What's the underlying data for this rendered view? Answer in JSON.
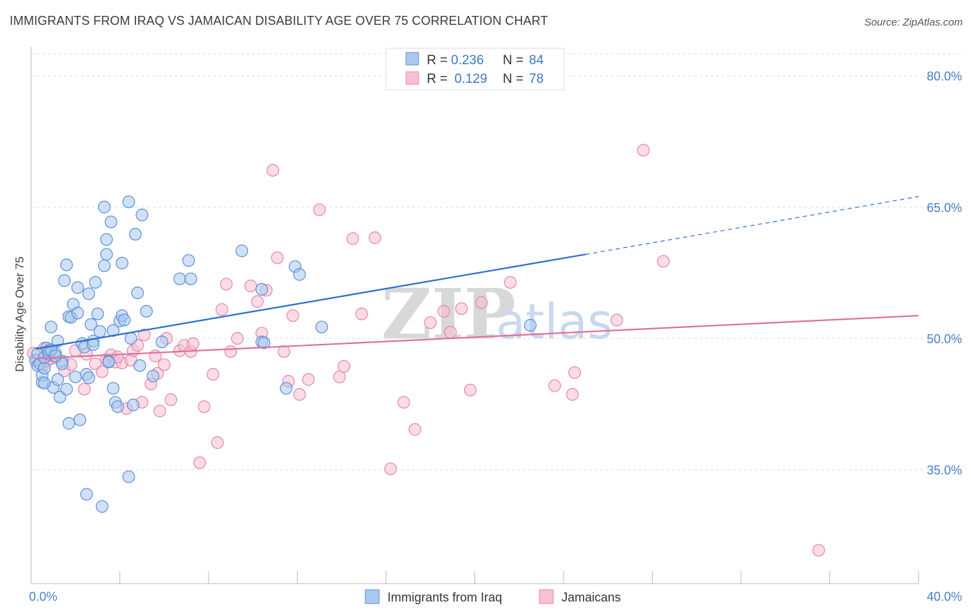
{
  "header": {
    "title": "IMMIGRANTS FROM IRAQ VS JAMAICAN DISABILITY AGE OVER 75 CORRELATION CHART",
    "source": "Source: ZipAtlas.com"
  },
  "legend": {
    "rows": [
      {
        "r_label": "R =",
        "r_value": "0.236",
        "n_label": "N =",
        "n_value": "84"
      },
      {
        "r_label": "R =",
        "r_value": "0.129",
        "n_label": "N =",
        "n_value": "78"
      }
    ]
  },
  "bottom_legend": [
    "Immigrants from Iraq",
    "Jamaicans"
  ],
  "watermark": {
    "zip": "ZIP",
    "atlas": "atlas"
  },
  "colors": {
    "series1_fill": "#aac8f0",
    "series1_stroke": "#5b8fd6",
    "series1_line": "#2b6fcf",
    "series2_fill": "#f8c0d2",
    "series2_stroke": "#e586a8",
    "series2_line": "#e0709a",
    "tick_label": "#4a7fc8",
    "grid": "#dddddd"
  },
  "chart_data": {
    "type": "scatter",
    "title": "IMMIGRANTS FROM IRAQ VS JAMAICAN DISABILITY AGE OVER 75 CORRELATION CHART",
    "xlabel": "",
    "ylabel": "Disability Age Over 75",
    "xlim": [
      0,
      40
    ],
    "ylim": [
      22,
      82.5
    ],
    "x_tick_labels": [
      "0.0%",
      "40.0%"
    ],
    "y_ticks": [
      35,
      50,
      65,
      80
    ],
    "y_tick_labels": [
      "35.0%",
      "50.0%",
      "65.0%",
      "80.0%"
    ],
    "grid": true,
    "legend_position": "top-center",
    "series": [
      {
        "name": "Immigrants from Iraq",
        "r": 0.236,
        "n": 84,
        "trend": {
          "x0": 0.2,
          "y0": 48.8,
          "x1": 25.0,
          "y1": 59.6,
          "dash_to_x": 40.0,
          "dash_to_y": 66.2
        },
        "points": [
          [
            0.2,
            47.5
          ],
          [
            0.3,
            48.3
          ],
          [
            0.3,
            46.9
          ],
          [
            0.4,
            47.1
          ],
          [
            0.5,
            45.0
          ],
          [
            0.5,
            45.8
          ],
          [
            0.6,
            46.6
          ],
          [
            0.6,
            47.8
          ],
          [
            0.7,
            48.9
          ],
          [
            0.8,
            48.2
          ],
          [
            0.8,
            48.6
          ],
          [
            0.9,
            51.3
          ],
          [
            1.0,
            44.4
          ],
          [
            1.1,
            48.3
          ],
          [
            1.2,
            49.7
          ],
          [
            1.2,
            45.3
          ],
          [
            1.3,
            43.3
          ],
          [
            1.4,
            47.4
          ],
          [
            1.5,
            56.6
          ],
          [
            1.6,
            44.2
          ],
          [
            1.6,
            58.4
          ],
          [
            1.7,
            52.5
          ],
          [
            1.7,
            40.3
          ],
          [
            1.8,
            52.4
          ],
          [
            1.9,
            53.9
          ],
          [
            2.0,
            45.6
          ],
          [
            2.1,
            55.8
          ],
          [
            2.1,
            52.9
          ],
          [
            2.2,
            40.7
          ],
          [
            2.3,
            49.4
          ],
          [
            2.4,
            49.0
          ],
          [
            2.5,
            32.2
          ],
          [
            2.5,
            45.9
          ],
          [
            2.6,
            55.1
          ],
          [
            2.6,
            45.5
          ],
          [
            2.7,
            51.6
          ],
          [
            2.8,
            49.7
          ],
          [
            2.9,
            56.4
          ],
          [
            3.0,
            52.8
          ],
          [
            3.1,
            50.8
          ],
          [
            3.2,
            30.8
          ],
          [
            3.3,
            58.3
          ],
          [
            3.3,
            65.0
          ],
          [
            3.4,
            59.6
          ],
          [
            3.4,
            61.3
          ],
          [
            3.5,
            47.4
          ],
          [
            3.6,
            63.3
          ],
          [
            3.7,
            44.3
          ],
          [
            3.7,
            50.9
          ],
          [
            3.8,
            42.7
          ],
          [
            3.9,
            42.2
          ],
          [
            4.0,
            52.0
          ],
          [
            4.1,
            58.6
          ],
          [
            4.1,
            52.6
          ],
          [
            4.2,
            52.1
          ],
          [
            4.4,
            34.2
          ],
          [
            4.4,
            65.6
          ],
          [
            4.5,
            50.0
          ],
          [
            4.6,
            42.4
          ],
          [
            4.7,
            61.9
          ],
          [
            4.8,
            55.2
          ],
          [
            4.9,
            46.9
          ],
          [
            5.0,
            64.1
          ],
          [
            5.2,
            53.1
          ],
          [
            5.5,
            45.7
          ],
          [
            5.9,
            49.6
          ],
          [
            6.7,
            56.8
          ],
          [
            7.1,
            58.9
          ],
          [
            7.2,
            56.8
          ],
          [
            9.5,
            60.0
          ],
          [
            10.4,
            49.6
          ],
          [
            10.4,
            55.6
          ],
          [
            10.5,
            49.5
          ],
          [
            11.5,
            44.3
          ],
          [
            11.9,
            58.2
          ],
          [
            12.1,
            57.3
          ],
          [
            13.1,
            51.3
          ],
          [
            22.5,
            51.5
          ],
          [
            0.9,
            48.7
          ],
          [
            1.4,
            47.1
          ],
          [
            0.6,
            44.9
          ],
          [
            2.8,
            49.3
          ],
          [
            1.1,
            48.0
          ],
          [
            3.5,
            47.3
          ]
        ]
      },
      {
        "name": "Jamaicans",
        "r": 0.129,
        "n": 78,
        "trend": {
          "x0": 0.2,
          "y0": 47.7,
          "x1": 40.0,
          "y1": 52.6
        },
        "points": [
          [
            0.1,
            48.3
          ],
          [
            0.3,
            47.5
          ],
          [
            0.5,
            46.8
          ],
          [
            0.6,
            48.9
          ],
          [
            0.7,
            47.4
          ],
          [
            0.9,
            47.7
          ],
          [
            1.1,
            47.8
          ],
          [
            1.5,
            46.3
          ],
          [
            1.8,
            47.0
          ],
          [
            2.0,
            48.6
          ],
          [
            2.4,
            44.2
          ],
          [
            2.5,
            48.2
          ],
          [
            2.9,
            47.1
          ],
          [
            3.2,
            46.2
          ],
          [
            3.4,
            47.6
          ],
          [
            3.6,
            48.1
          ],
          [
            3.8,
            47.3
          ],
          [
            4.1,
            47.2
          ],
          [
            4.3,
            42.0
          ],
          [
            4.5,
            47.5
          ],
          [
            4.6,
            48.6
          ],
          [
            4.8,
            49.2
          ],
          [
            5.0,
            42.7
          ],
          [
            5.1,
            50.4
          ],
          [
            5.4,
            44.8
          ],
          [
            5.6,
            48.0
          ],
          [
            5.7,
            46.0
          ],
          [
            5.8,
            41.7
          ],
          [
            6.0,
            47.0
          ],
          [
            6.1,
            50.0
          ],
          [
            6.3,
            43.0
          ],
          [
            6.7,
            48.6
          ],
          [
            6.9,
            49.2
          ],
          [
            7.2,
            48.5
          ],
          [
            7.3,
            49.4
          ],
          [
            7.6,
            35.8
          ],
          [
            7.8,
            42.2
          ],
          [
            8.2,
            45.9
          ],
          [
            8.4,
            38.1
          ],
          [
            8.6,
            53.3
          ],
          [
            8.8,
            56.2
          ],
          [
            9.0,
            48.5
          ],
          [
            9.3,
            50.0
          ],
          [
            9.9,
            56.0
          ],
          [
            10.2,
            54.2
          ],
          [
            10.4,
            50.6
          ],
          [
            10.6,
            55.5
          ],
          [
            10.9,
            69.2
          ],
          [
            11.1,
            59.2
          ],
          [
            11.4,
            48.5
          ],
          [
            11.6,
            45.1
          ],
          [
            11.8,
            52.6
          ],
          [
            12.1,
            43.6
          ],
          [
            12.5,
            45.3
          ],
          [
            13.0,
            64.7
          ],
          [
            13.9,
            45.6
          ],
          [
            14.1,
            46.8
          ],
          [
            14.5,
            61.4
          ],
          [
            14.9,
            52.8
          ],
          [
            15.5,
            61.5
          ],
          [
            16.2,
            35.1
          ],
          [
            16.8,
            42.7
          ],
          [
            17.3,
            39.6
          ],
          [
            18.0,
            51.8
          ],
          [
            18.6,
            53.1
          ],
          [
            18.9,
            50.7
          ],
          [
            19.4,
            53.4
          ],
          [
            19.8,
            44.1
          ],
          [
            20.3,
            54.1
          ],
          [
            21.6,
            56.4
          ],
          [
            23.6,
            44.6
          ],
          [
            24.4,
            43.6
          ],
          [
            24.5,
            46.1
          ],
          [
            26.4,
            52.1
          ],
          [
            27.6,
            71.5
          ],
          [
            28.5,
            58.8
          ],
          [
            35.5,
            25.8
          ],
          [
            3.9,
            47.9
          ]
        ]
      }
    ]
  }
}
